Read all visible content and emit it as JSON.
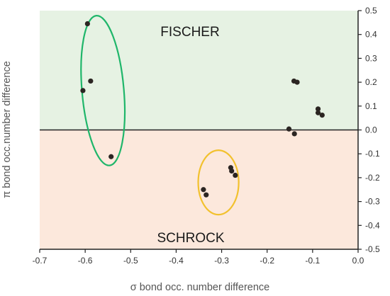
{
  "chart_data": {
    "type": "scatter",
    "title": "",
    "xlabel": "σ bond occ. number difference",
    "ylabel": "π bond occ.number difference",
    "xlim": [
      -0.7,
      0.0
    ],
    "ylim": [
      -0.5,
      0.5
    ],
    "x_ticks": [
      "-0.7",
      "-0.6",
      "-0.5",
      "-0.4",
      "-0.3",
      "-0.2",
      "-0.1",
      "0.0"
    ],
    "y_ticks": [
      "0.5",
      "0.4",
      "0.3",
      "0.2",
      "0.1",
      "0.0",
      "-0.1",
      "-0.2",
      "-0.3",
      "-0.4",
      "-0.5"
    ],
    "y_axis_side": "right",
    "grid": false,
    "regions": [
      {
        "label": "FISCHER",
        "y_range": [
          0.0,
          0.5
        ],
        "color": "#e6f2e3"
      },
      {
        "label": "SCHROCK",
        "y_range": [
          -0.5,
          0.0
        ],
        "color": "#fce8dc"
      }
    ],
    "points": [
      {
        "x": -0.595,
        "y": 0.445
      },
      {
        "x": -0.588,
        "y": 0.205
      },
      {
        "x": -0.605,
        "y": 0.165
      },
      {
        "x": -0.543,
        "y": -0.112
      },
      {
        "x": -0.28,
        "y": -0.158
      },
      {
        "x": -0.278,
        "y": -0.172
      },
      {
        "x": -0.27,
        "y": -0.19
      },
      {
        "x": -0.34,
        "y": -0.25
      },
      {
        "x": -0.334,
        "y": -0.272
      },
      {
        "x": -0.141,
        "y": 0.205
      },
      {
        "x": -0.134,
        "y": 0.2
      },
      {
        "x": -0.088,
        "y": 0.088
      },
      {
        "x": -0.088,
        "y": 0.072
      },
      {
        "x": -0.079,
        "y": 0.062
      },
      {
        "x": -0.152,
        "y": 0.004
      },
      {
        "x": -0.14,
        "y": -0.016
      }
    ],
    "point_color": "#2b2522",
    "groups": [
      {
        "shape": "ellipse",
        "color": "#1fb66a",
        "center": [
          -0.561,
          0.165
        ],
        "rx": 0.046,
        "ry": 0.315,
        "rotation_deg": -5
      },
      {
        "shape": "circle",
        "color": "#f2c12e",
        "center": [
          -0.307,
          -0.22
        ],
        "rx": 0.0445,
        "ry": 0.135,
        "rotation_deg": 0
      }
    ],
    "zero_line": true
  }
}
